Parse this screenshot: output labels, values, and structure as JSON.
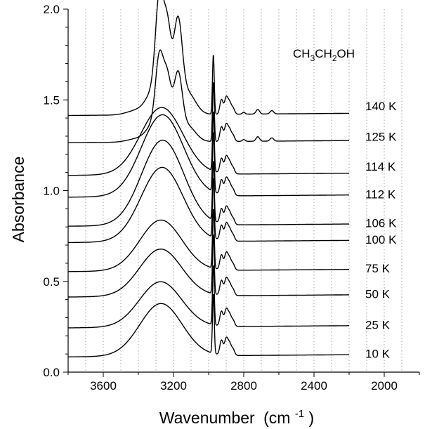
{
  "chart_data": {
    "type": "line",
    "title": "",
    "xlabel": "Wavenumber",
    "xlabel_unit": "(cm",
    "xlabel_unit_exp": "-1",
    "xlabel_unit_close": ")",
    "ylabel": "Absorbance",
    "annotation": "CH3CH2OH",
    "xlim": [
      3800,
      1800
    ],
    "x_reversed": true,
    "ylim": [
      0.0,
      2.0
    ],
    "x_ticks": [
      3600,
      3200,
      2800,
      2400,
      2000
    ],
    "y_ticks": [
      "0.0",
      "0.5",
      "1.0",
      "1.5",
      "2.0"
    ],
    "grid": "vertical-dotted",
    "x_range_plotted": [
      3800,
      2200
    ],
    "series": [
      {
        "name": "10 K",
        "baseline": 0.09,
        "type": "amorphous",
        "p": 0.29
      },
      {
        "name": "25 K",
        "baseline": 0.25,
        "type": "amorphous",
        "p": 0.25
      },
      {
        "name": "50 K",
        "baseline": 0.42,
        "type": "amorphous",
        "p": 0.26
      },
      {
        "name": "75 K",
        "baseline": 0.56,
        "type": "amorphous",
        "p": 0.28
      },
      {
        "name": "100 K",
        "baseline": 0.72,
        "type": "amorphous",
        "p": 0.41
      },
      {
        "name": "106 K",
        "baseline": 0.81,
        "type": "amorphous",
        "p": 0.47
      },
      {
        "name": "112 K",
        "baseline": 0.97,
        "type": "amorphous",
        "p": 0.45
      },
      {
        "name": "114 K",
        "baseline": 1.09,
        "type": "amorphous",
        "p": 0.37
      },
      {
        "name": "125 K",
        "baseline": 1.27,
        "type": "crystalline",
        "p": 0.39
      },
      {
        "name": "140 K",
        "baseline": 1.42,
        "type": "crystalline",
        "p": 0.54
      }
    ]
  }
}
